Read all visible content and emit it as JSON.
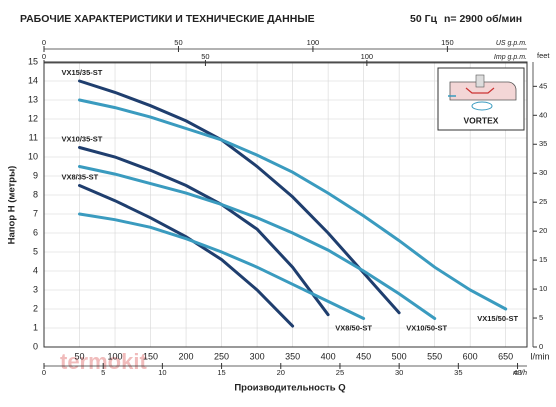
{
  "chart_data": {
    "type": "line",
    "title": "РАБОЧИЕ ХАРАКТЕРИСТИКИ И ТЕХНИЧЕСКИЕ ДАННЫЕ",
    "frequency": "50 Гц",
    "speed": "n= 2900 об/мин",
    "x_label": "Производительность Q",
    "y_label": "Напор H (метры)",
    "x_unit": "l/min",
    "xlim": [
      0,
      680
    ],
    "ylim": [
      0,
      15
    ],
    "xticks": [
      50,
      100,
      150,
      200,
      250,
      300,
      350,
      400,
      450,
      500,
      550,
      600,
      650
    ],
    "yticks": [
      0,
      1,
      2,
      3,
      4,
      5,
      6,
      7,
      8,
      9,
      10,
      11,
      12,
      13,
      14,
      15
    ],
    "grid": true,
    "secondary_axes": [
      {
        "label": "US g.p.m.",
        "side": "top",
        "lim": [
          0,
          179.6
        ],
        "ticks": [
          0,
          50,
          100,
          150
        ]
      },
      {
        "label": "Imp g.p.m.",
        "side": "top",
        "lim": [
          0,
          149.6
        ],
        "ticks": [
          0,
          50,
          100
        ]
      },
      {
        "label": "m³/h",
        "side": "bottom",
        "lim": [
          0,
          40.8
        ],
        "ticks": [
          0,
          5,
          10,
          15,
          20,
          25,
          30,
          35,
          40
        ]
      },
      {
        "label": "feet",
        "side": "right",
        "lim": [
          0,
          49.2
        ],
        "ticks": [
          0,
          5,
          10,
          15,
          20,
          25,
          30,
          35,
          40,
          45
        ]
      }
    ],
    "inset_label": "VORTEX",
    "watermark": "termokit",
    "series": [
      {
        "name": "VX15/35-ST",
        "color": "#1f3e6e",
        "x": [
          50,
          100,
          150,
          200,
          250,
          300,
          350,
          400,
          450,
          500
        ],
        "values": [
          14,
          13.4,
          12.7,
          11.9,
          10.9,
          9.5,
          7.9,
          6.0,
          3.9,
          1.8
        ]
      },
      {
        "name": "VX15/50-ST",
        "color": "#3a9bbf",
        "x": [
          50,
          100,
          150,
          200,
          250,
          300,
          350,
          400,
          450,
          500,
          550,
          600,
          650
        ],
        "values": [
          13,
          12.6,
          12.1,
          11.5,
          10.9,
          10.1,
          9.2,
          8.1,
          6.9,
          5.6,
          4.2,
          3.0,
          2.0
        ]
      },
      {
        "name": "VX10/35-ST",
        "color": "#1f3e6e",
        "x": [
          50,
          100,
          150,
          200,
          250,
          300,
          350,
          400
        ],
        "values": [
          10.5,
          10,
          9.3,
          8.5,
          7.5,
          6.2,
          4.2,
          1.7
        ]
      },
      {
        "name": "VX10/50-ST",
        "color": "#3a9bbf",
        "x": [
          50,
          100,
          150,
          200,
          250,
          300,
          350,
          400,
          450,
          500,
          550
        ],
        "values": [
          9.5,
          9.1,
          8.6,
          8.1,
          7.5,
          6.8,
          6.0,
          5.1,
          4.0,
          2.8,
          1.5
        ]
      },
      {
        "name": "VX8/35-ST",
        "color": "#1f3e6e",
        "x": [
          50,
          100,
          150,
          200,
          250,
          300,
          350
        ],
        "values": [
          8.5,
          7.7,
          6.8,
          5.8,
          4.6,
          3.0,
          1.1
        ]
      },
      {
        "name": "VX8/50-ST",
        "color": "#3a9bbf",
        "x": [
          50,
          100,
          150,
          200,
          250,
          300,
          350,
          400,
          450
        ],
        "values": [
          7,
          6.7,
          6.3,
          5.7,
          5.0,
          4.2,
          3.3,
          2.4,
          1.5
        ]
      }
    ]
  }
}
